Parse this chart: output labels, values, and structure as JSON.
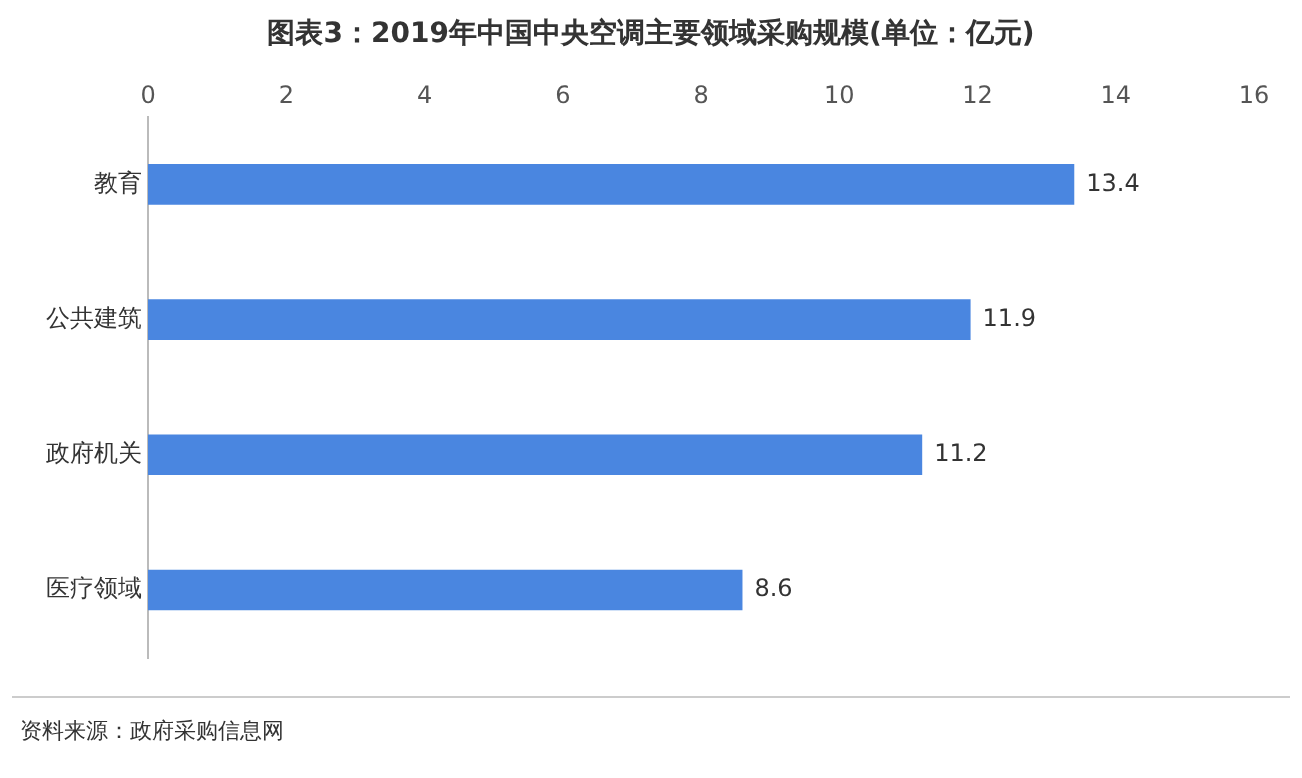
{
  "chart_data": {
    "type": "bar",
    "orientation": "horizontal",
    "title": "图表3：2019年中国中央空调主要领域采购规模(单位：亿元)",
    "categories": [
      "教育",
      "公共建筑",
      "政府机关",
      "医疗领域"
    ],
    "values": [
      13.4,
      11.9,
      11.2,
      8.6
    ],
    "color": "#4a86e0",
    "xlim": [
      0,
      16
    ],
    "xticks": [
      0,
      2,
      4,
      6,
      8,
      10,
      12,
      14,
      16
    ],
    "grid": false,
    "legend": false,
    "data_labels": true,
    "annotations": [
      "资料来源：政府采购信息网"
    ]
  }
}
